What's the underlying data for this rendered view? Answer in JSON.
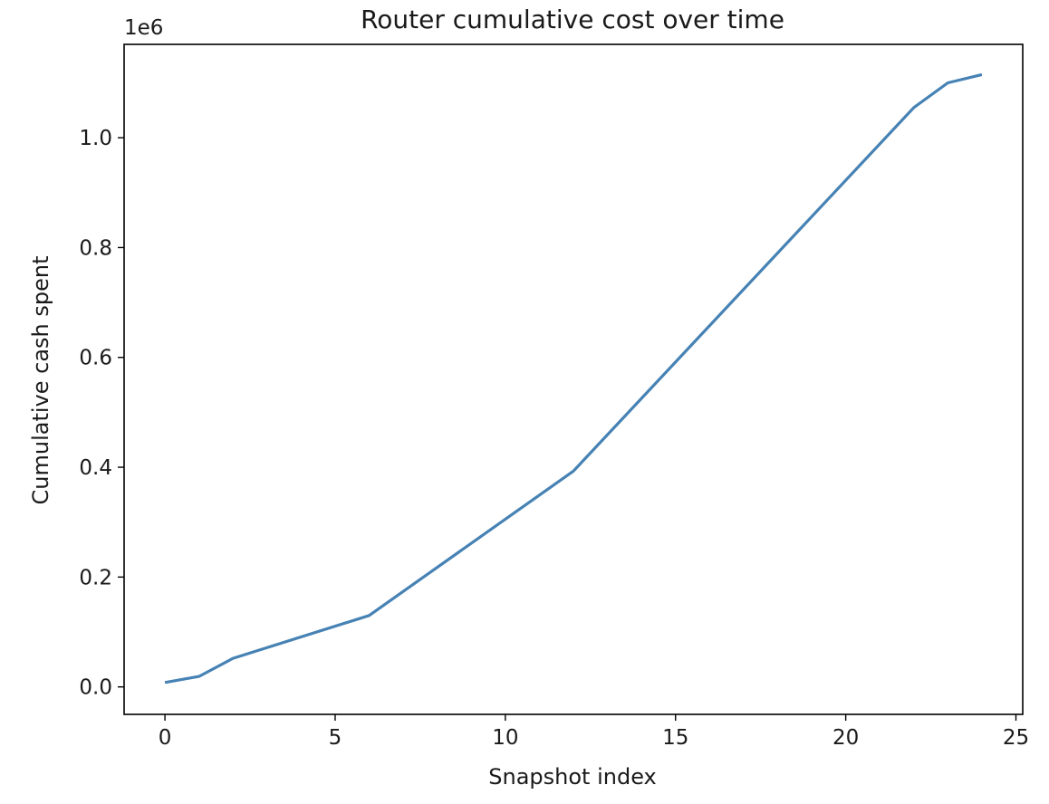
{
  "chart_data": {
    "type": "line",
    "title": "Router cumulative cost over time",
    "xlabel": "Snapshot index",
    "ylabel": "Cumulative cash spent",
    "y_offset_label": "1e6",
    "xlim": [
      -1.2,
      25.2
    ],
    "ylim": [
      -0.05,
      1.17
    ],
    "xticks": [
      0,
      5,
      10,
      15,
      20,
      25
    ],
    "xtick_labels": [
      "0",
      "5",
      "10",
      "15",
      "20",
      "25"
    ],
    "yticks": [
      0.0,
      0.2,
      0.4,
      0.6,
      0.8,
      1.0
    ],
    "ytick_labels": [
      "0.0",
      "0.2",
      "0.4",
      "0.6",
      "0.8",
      "1.0"
    ],
    "grid": false,
    "line_color": "#4682b4",
    "series": [
      {
        "x": [
          0,
          1,
          2,
          6,
          12,
          22,
          23,
          24
        ],
        "values": [
          0.008,
          0.019,
          0.052,
          0.13,
          0.393,
          1.055,
          1.1,
          1.115
        ]
      }
    ]
  }
}
